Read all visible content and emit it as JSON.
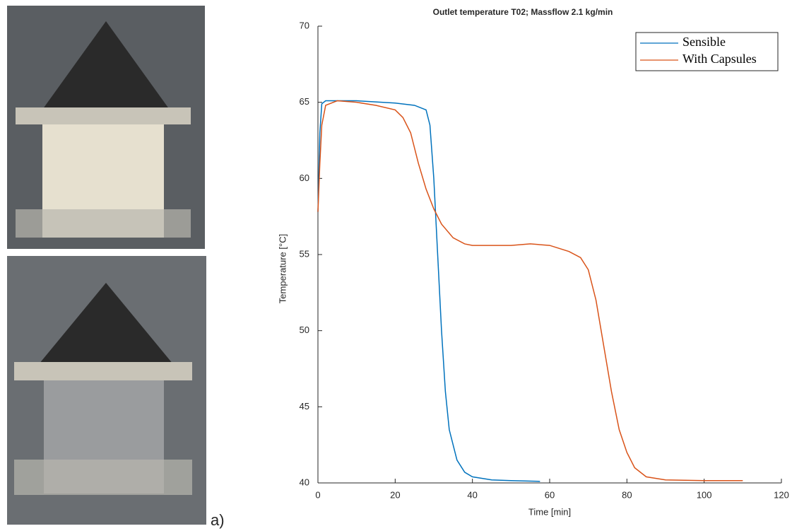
{
  "panel_label": "a)",
  "chart_data": {
    "type": "line",
    "title": "Outlet temperature T02; Massflow 2.1 kg/min",
    "x_label": "Time [min]",
    "y_label": "Temperature [°C]",
    "xlim": [
      0,
      120
    ],
    "xticks": [
      0,
      20,
      40,
      60,
      80,
      100,
      120
    ],
    "ylim": [
      40,
      70
    ],
    "yticks": [
      40,
      45,
      50,
      55,
      60,
      65,
      70
    ],
    "grid": false,
    "legend_position": "upper-right",
    "series": [
      {
        "name": "Sensible",
        "color": "#0072bd",
        "x": [
          0,
          0.5,
          1,
          2,
          5,
          10,
          20,
          25,
          28,
          29,
          30,
          31,
          32,
          33,
          34,
          36,
          38,
          40,
          45,
          50,
          57.5
        ],
        "values": [
          57.8,
          63,
          64.9,
          65.1,
          65.1,
          65.1,
          64.95,
          64.8,
          64.5,
          63.5,
          60,
          55,
          50,
          46,
          43.5,
          41.5,
          40.7,
          40.4,
          40.2,
          40.15,
          40.1
        ]
      },
      {
        "name": "With Capsules",
        "color": "#d95319",
        "x": [
          0,
          0.5,
          1,
          2,
          5,
          10,
          15,
          20,
          22,
          24,
          26,
          28,
          30,
          32,
          35,
          38,
          40,
          50,
          55,
          60,
          65,
          68,
          70,
          72,
          74,
          76,
          78,
          80,
          82,
          85,
          90,
          100,
          110
        ],
        "values": [
          57.8,
          61,
          63.5,
          64.8,
          65.1,
          65.0,
          64.8,
          64.5,
          64,
          63,
          61,
          59.3,
          58,
          57,
          56.1,
          55.7,
          55.6,
          55.6,
          55.7,
          55.6,
          55.2,
          54.8,
          54,
          52,
          49,
          46,
          43.5,
          42,
          41,
          40.4,
          40.2,
          40.15,
          40.15
        ]
      }
    ]
  }
}
